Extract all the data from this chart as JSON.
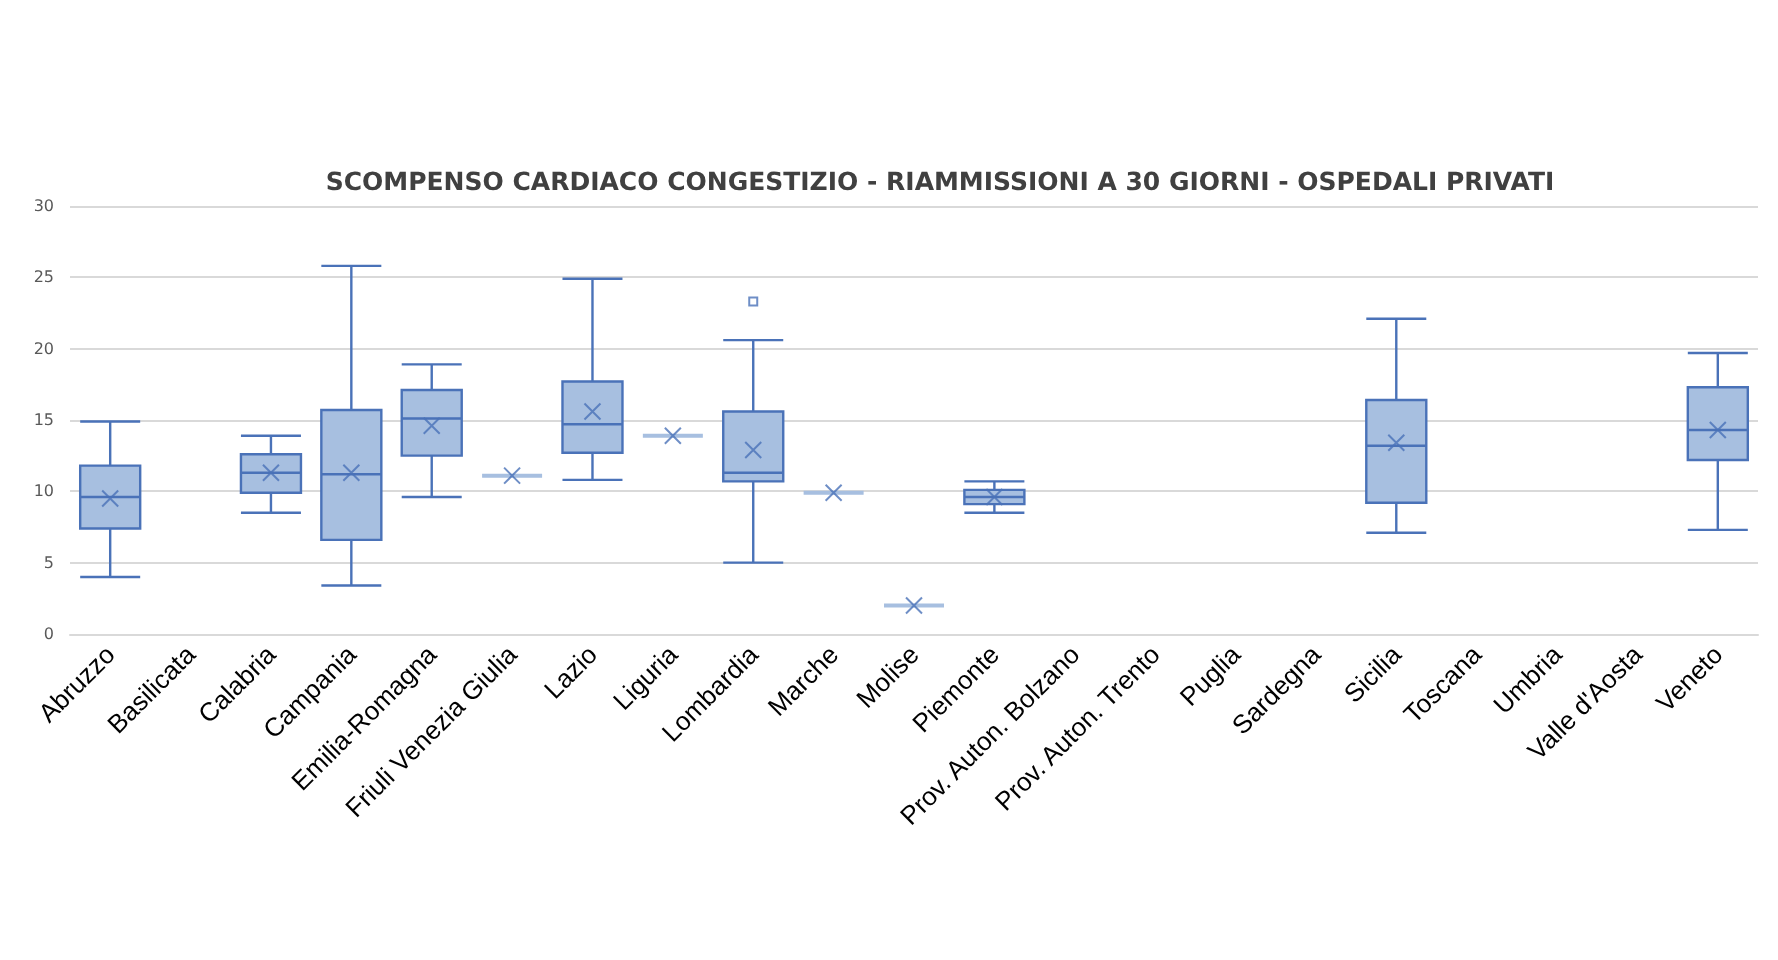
{
  "chart_data": {
    "type": "box",
    "title": "SCOMPENSO CARDIACO CONGESTIZIO - RIAMMISSIONI A 30 GIORNI - OSPEDALI PRIVATI",
    "categories": [
      "Abruzzo",
      "Basilicata",
      "Calabria",
      "Campania",
      "Emilia-Romagna",
      "Friuli Venezia Giulia",
      "Lazio",
      "Liguria",
      "Lombardia",
      "Marche",
      "Molise",
      "Piemonte",
      "Prov. Auton. Bolzano",
      "Prov. Auton. Trento",
      "Puglia",
      "Sardegna",
      "Sicilia",
      "Toscana",
      "Umbria",
      "Valle d'Aosta",
      "Veneto"
    ],
    "color": "#a7bfe0",
    "boxes": [
      {
        "low": 4.0,
        "q1": 7.4,
        "median": 9.6,
        "q3": 11.8,
        "high": 14.9,
        "mean": 9.5
      },
      null,
      {
        "low": 8.5,
        "q1": 9.9,
        "median": 11.3,
        "q3": 12.6,
        "high": 13.9,
        "mean": 11.3
      },
      {
        "low": 3.4,
        "q1": 6.6,
        "median": 11.2,
        "q3": 15.7,
        "high": 25.8,
        "mean": 11.3
      },
      {
        "low": 9.6,
        "q1": 12.5,
        "median": 15.1,
        "q3": 17.1,
        "high": 18.9,
        "mean": 14.6
      },
      {
        "low": 11.1,
        "q1": 11.1,
        "median": 11.1,
        "q3": 11.1,
        "high": 11.1,
        "mean": 11.1
      },
      {
        "low": 10.8,
        "q1": 12.7,
        "median": 14.7,
        "q3": 17.7,
        "high": 24.9,
        "mean": 15.6
      },
      {
        "low": 13.9,
        "q1": 13.9,
        "median": 13.9,
        "q3": 13.9,
        "high": 13.9,
        "mean": 13.9
      },
      {
        "low": 5.0,
        "q1": 10.7,
        "median": 11.3,
        "q3": 15.6,
        "high": 20.6,
        "mean": 12.9,
        "outliers": [
          23.3
        ]
      },
      {
        "low": 9.9,
        "q1": 9.9,
        "median": 9.9,
        "q3": 9.9,
        "high": 9.9,
        "mean": 9.9
      },
      {
        "low": 2.0,
        "q1": 2.0,
        "median": 2.0,
        "q3": 2.0,
        "high": 2.0,
        "mean": 2.0
      },
      {
        "low": 8.5,
        "q1": 9.1,
        "median": 9.6,
        "q3": 10.1,
        "high": 10.7,
        "mean": 9.6
      },
      null,
      null,
      null,
      null,
      {
        "low": 7.1,
        "q1": 9.2,
        "median": 13.2,
        "q3": 16.4,
        "high": 22.1,
        "mean": 13.4
      },
      null,
      null,
      null,
      {
        "low": 7.3,
        "q1": 12.2,
        "median": 14.3,
        "q3": 17.3,
        "high": 19.7,
        "mean": 14.3
      }
    ],
    "ylim": [
      0,
      30
    ],
    "yticks": [
      0,
      5,
      10,
      15,
      20,
      25,
      30
    ],
    "grid": "y"
  }
}
